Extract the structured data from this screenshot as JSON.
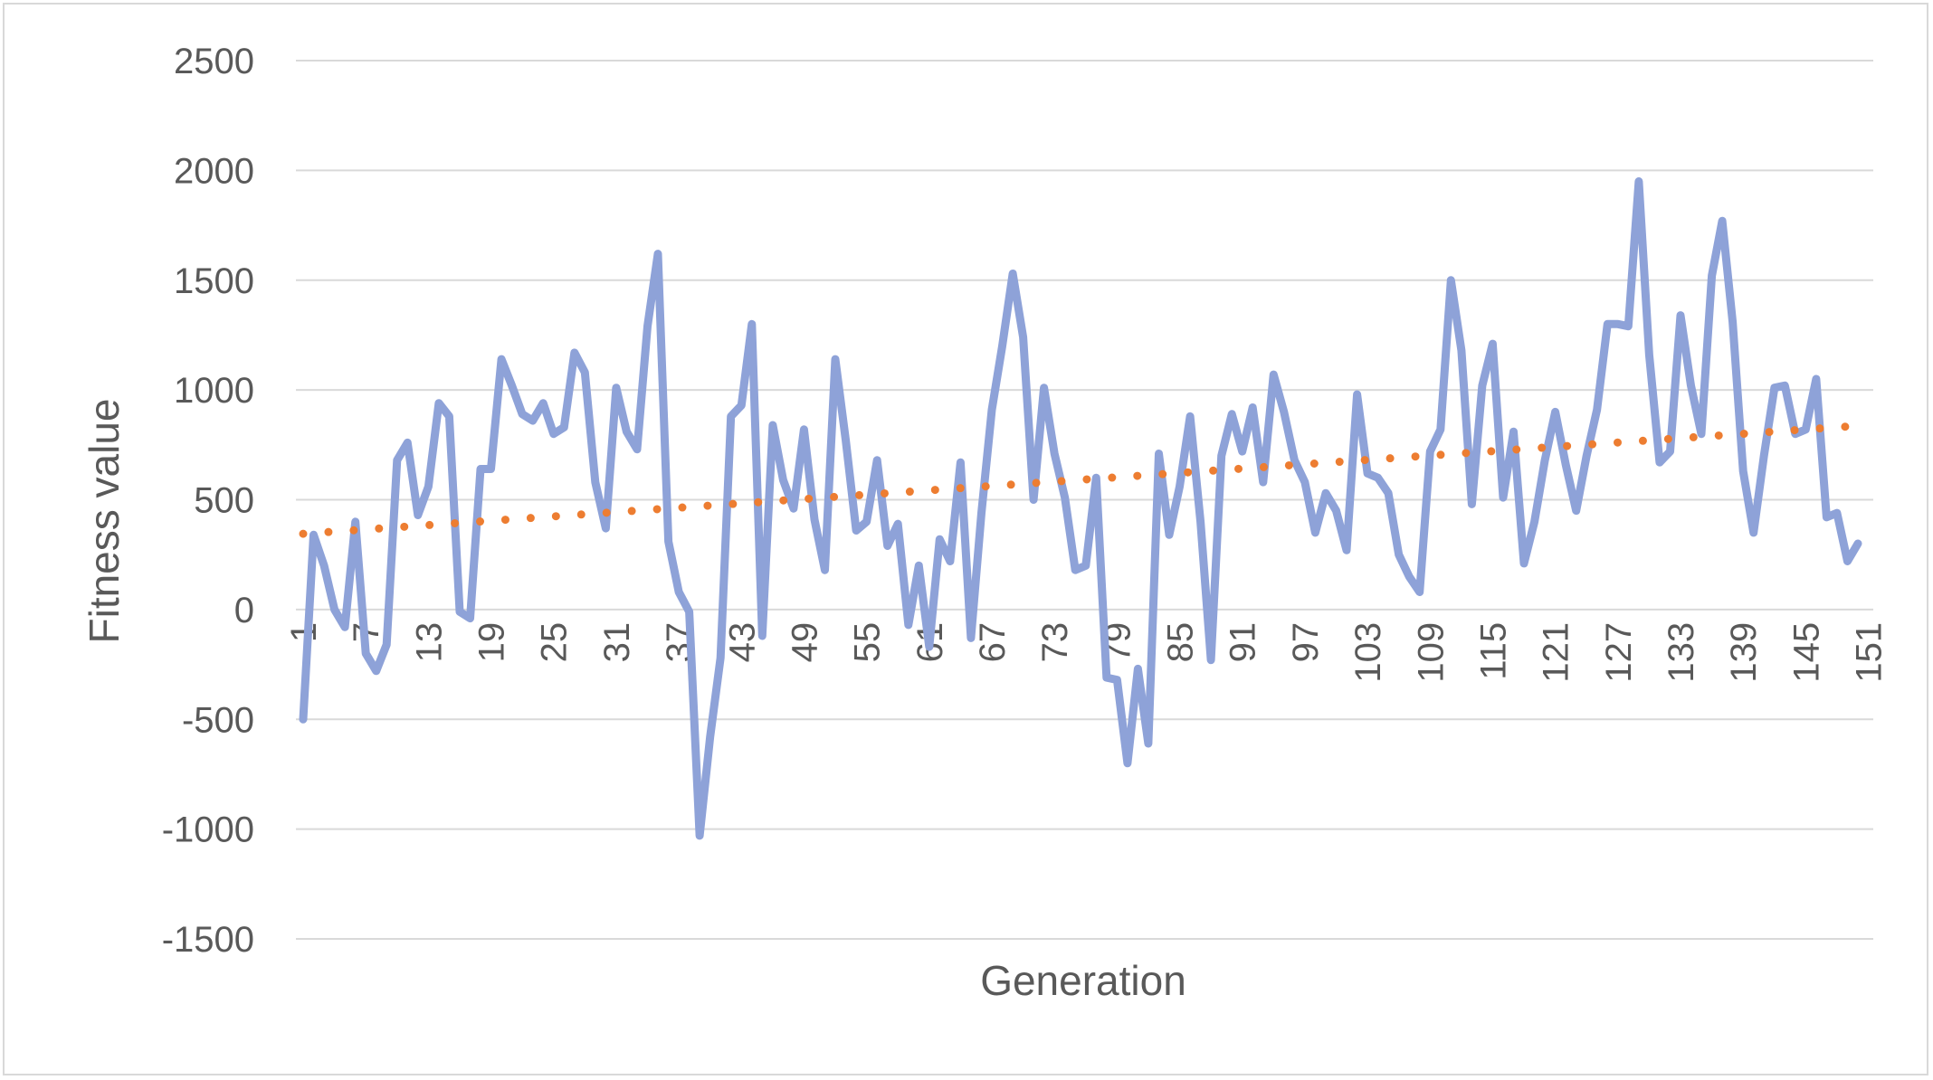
{
  "chart_data": {
    "type": "line",
    "xlabel": "Generation",
    "ylabel": "Fitness value",
    "ylim": [
      -1500,
      2500
    ],
    "yticks": [
      -1500,
      -1000,
      -500,
      0,
      500,
      1000,
      1500,
      2000,
      2500
    ],
    "x_tick_labels": [
      "1",
      "7",
      "13",
      "19",
      "25",
      "31",
      "37",
      "43",
      "49",
      "55",
      "61",
      "67",
      "73",
      "79",
      "85",
      "91",
      "97",
      "103",
      "109",
      "115",
      "121",
      "127",
      "133",
      "139",
      "145",
      "151"
    ],
    "grid": "horizontal",
    "legend": "none",
    "series": [
      {
        "color": "#8ea2d8",
        "style": "solid",
        "x_start": 1,
        "values": [
          -500,
          340,
          200,
          0,
          -80,
          400,
          -200,
          -280,
          -160,
          680,
          760,
          430,
          560,
          940,
          880,
          -10,
          -40,
          640,
          640,
          1140,
          1020,
          890,
          860,
          940,
          800,
          830,
          1170,
          1080,
          580,
          370,
          1010,
          810,
          730,
          1290,
          1620,
          310,
          80,
          -10,
          -1030,
          -580,
          -220,
          880,
          930,
          1300,
          -120,
          840,
          590,
          460,
          820,
          410,
          180,
          1140,
          770,
          360,
          400,
          680,
          290,
          390,
          -70,
          200,
          -170,
          320,
          220,
          670,
          -130,
          440,
          910,
          1200,
          1530,
          1240,
          500,
          1010,
          710,
          510,
          180,
          200,
          600,
          -310,
          -320,
          -700,
          -270,
          -610,
          710,
          340,
          560,
          880,
          400,
          -230,
          700,
          890,
          720,
          920,
          580,
          1070,
          900,
          680,
          580,
          350,
          530,
          450,
          270,
          980,
          620,
          600,
          530,
          250,
          150,
          80,
          720,
          820,
          1500,
          1180,
          480,
          1020,
          1210,
          510,
          810,
          210,
          400,
          680,
          900,
          660,
          450,
          700,
          910,
          1300,
          1300,
          1290,
          1950,
          1160,
          670,
          720,
          1340,
          1020,
          800,
          1520,
          1770,
          1310,
          630,
          350,
          700,
          1010,
          1020,
          800,
          820,
          1050,
          420,
          440,
          220,
          300
        ]
      },
      {
        "color": "#ed7d31",
        "style": "dotted-trendline",
        "x_start": 1,
        "x_end": 151,
        "y_start": 345,
        "y_end": 840
      }
    ]
  }
}
